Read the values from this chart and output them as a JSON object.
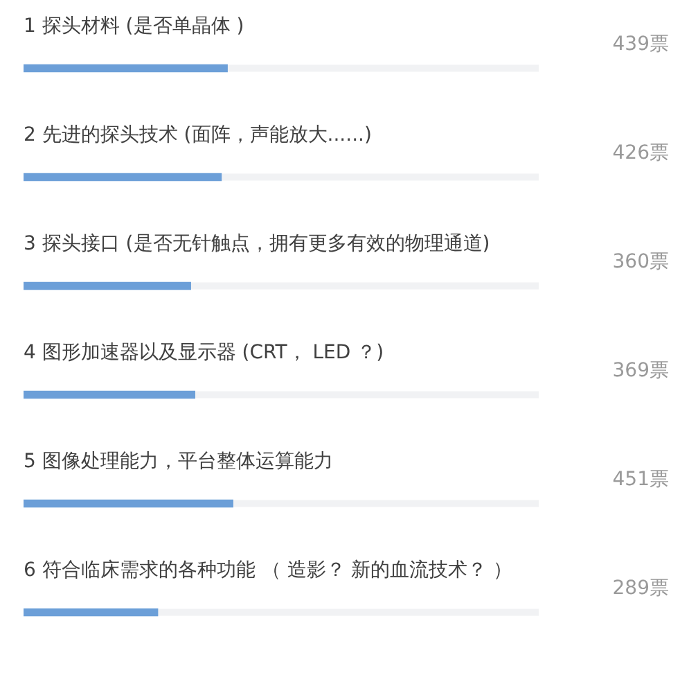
{
  "chart_data": {
    "type": "bar",
    "orientation": "horizontal",
    "categories": [
      "1 探头材料 (是否单晶体 )",
      "2 先进的探头技术 (面阵，声能放大......)",
      "3 探头接口 (是否无针触点，拥有更多有效的物理通道)",
      "4 图形加速器以及显示器 (CRT， LED ？)",
      "5 图像处理能力，平台整体运算能力",
      "6 符合临床需求的各种功能 （ 造影？ 新的血流技术？ ）"
    ],
    "values": [
      439,
      426,
      360,
      369,
      451,
      289
    ],
    "value_labels": [
      "439票",
      "426票",
      "360票",
      "369票",
      "451票",
      "289票"
    ],
    "color": "#6c9fd8",
    "xlim": [
      0,
      1110
    ],
    "tick_labels": "y"
  }
}
